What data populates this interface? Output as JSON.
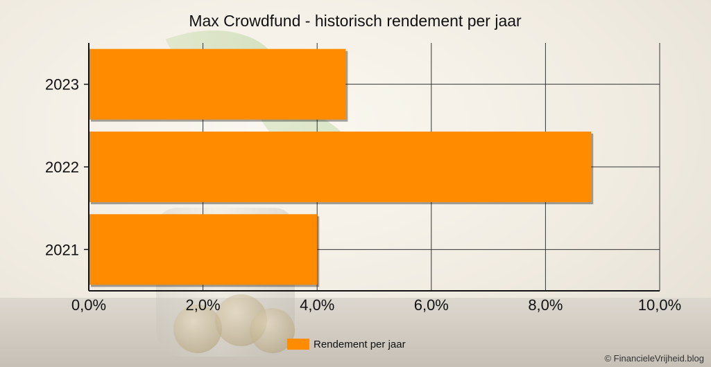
{
  "chart_data": {
    "type": "bar",
    "orientation": "horizontal",
    "title": "Max Crowdfund - historisch rendement per jaar",
    "categories": [
      "2021",
      "2022",
      "2023"
    ],
    "series": [
      {
        "name": "Rendement per jaar",
        "values": [
          4.0,
          8.8,
          4.5
        ]
      }
    ],
    "xlim": [
      0,
      10
    ],
    "x_ticks": [
      "0,0%",
      "2,0%",
      "4,0%",
      "6,0%",
      "8,0%",
      "10,0%"
    ],
    "grid": true,
    "legend": "bottom-center",
    "bar_color": "#ff8c00"
  },
  "footer": {
    "copyright": "© FinancieleVrijheid.blog"
  }
}
